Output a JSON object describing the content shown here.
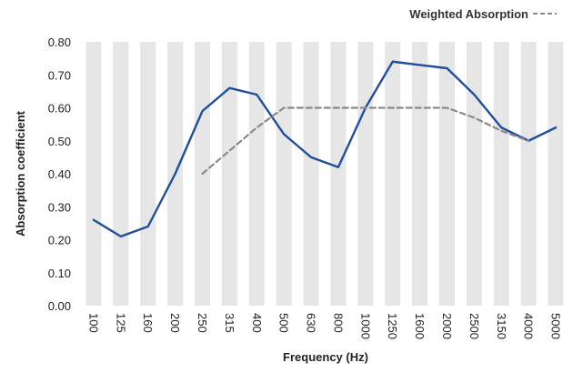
{
  "chart_data": {
    "type": "line",
    "title": "",
    "xlabel": "Frequency (Hz)",
    "ylabel": "Absorption coefficient",
    "categories": [
      "100",
      "125",
      "160",
      "200",
      "250",
      "315",
      "400",
      "500",
      "630",
      "800",
      "1000",
      "1250",
      "1600",
      "2000",
      "2500",
      "3150",
      "4000",
      "5000"
    ],
    "ylim": [
      0,
      0.8
    ],
    "yticks": [
      "0.00",
      "0.10",
      "0.20",
      "0.30",
      "0.40",
      "0.50",
      "0.60",
      "0.70",
      "0.80"
    ],
    "grid": "alternating vertical bands",
    "legend_position": "top-right",
    "series": [
      {
        "name": "",
        "color": "#1f4e9c",
        "style": "solid",
        "values": [
          0.26,
          0.21,
          0.24,
          0.4,
          0.59,
          0.66,
          0.64,
          0.52,
          0.45,
          0.42,
          0.6,
          0.74,
          0.73,
          0.72,
          0.64,
          0.54,
          0.5,
          0.54
        ]
      },
      {
        "name": "Weighted Absorption",
        "color": "#8a8a8a",
        "style": "dashed",
        "values": [
          null,
          null,
          null,
          null,
          0.4,
          0.47,
          0.54,
          0.6,
          0.6,
          0.6,
          0.6,
          0.6,
          0.6,
          0.6,
          0.57,
          0.53,
          0.5,
          null
        ]
      }
    ],
    "band_color": "#e6e6e6"
  }
}
